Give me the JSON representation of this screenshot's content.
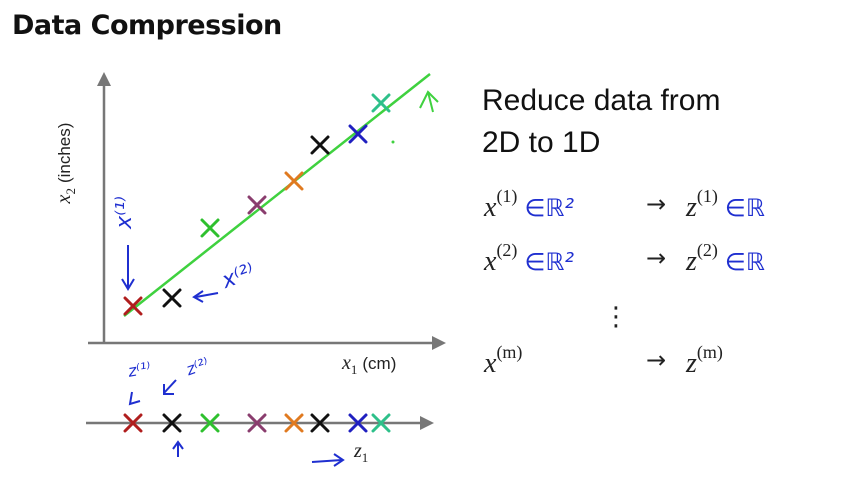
{
  "title": "Data Compression",
  "right_panel": {
    "line1": "Reduce data from",
    "line2": "2D to 1D",
    "rows": [
      {
        "x": "x",
        "x_sup": "(1)",
        "x_set": "∈ℝ²",
        "arrow": "→",
        "z": "z",
        "z_sup": "(1)",
        "z_set": "∈ℝ"
      },
      {
        "x": "x",
        "x_sup": "(2)",
        "x_set": "∈ℝ²",
        "arrow": "→",
        "z": "z",
        "z_sup": "(2)",
        "z_set": "∈ℝ"
      },
      {
        "x": "x",
        "x_sup": "(m)",
        "x_set": "",
        "arrow": "→",
        "z": "z",
        "z_sup": "(m)",
        "z_set": ""
      }
    ],
    "dots": "⋮"
  },
  "axes": {
    "y_label_var": "x",
    "y_label_sub": "2",
    "y_label_unit": "(inches)",
    "x_label_var": "x",
    "x_label_sub": "1",
    "x_label_unit": "(cm)",
    "z_label_var": "z",
    "z_label_sub": "1"
  },
  "annotations": {
    "x1_note": "x⁽¹⁾",
    "x2_note": "x⁽²⁾",
    "z1_note": "z⁽¹⁾",
    "z2_note": "z⁽²⁾"
  },
  "colors": {
    "line": "#3fd13f",
    "axis": "#777777",
    "ink": "#1f2fd0",
    "points": [
      "#b01e1e",
      "#111111",
      "#2ec02e",
      "#8a3d6e",
      "#e07a20",
      "#111111",
      "#2020c0",
      "#2ec08a"
    ]
  }
}
